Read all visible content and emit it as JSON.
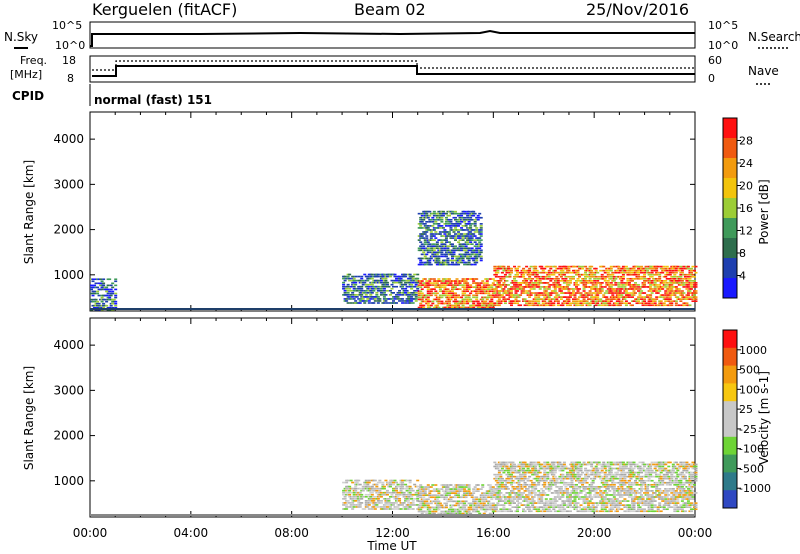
{
  "header": {
    "station": "Kerguelen (fitACF)",
    "beam": "Beam 02",
    "date": "25/Nov/2016"
  },
  "top_panels": {
    "nsky_label": "N.Sky",
    "nsky_ticks": [
      "10^5",
      "10^0"
    ],
    "nsearch_label": "N.Search",
    "nsearch_ticks": [
      "10^5",
      "10^0"
    ],
    "freq_label_line1": "Freq.",
    "freq_label_line2": "[MHz]",
    "freq_ticks": [
      "18",
      "8"
    ],
    "nave_label": "Nave",
    "nave_ticks": [
      "60",
      "0"
    ],
    "cpid_label": "CPID",
    "cpid_value": "normal (fast) 151"
  },
  "colors": {
    "power_scale": [
      "#1919ff",
      "#1e3fb0",
      "#2e6e4d",
      "#3f9a5a",
      "#9ccd36",
      "#f3c40c",
      "#f39b0e",
      "#f05a10",
      "#ff1010"
    ],
    "velocity_scale": [
      "#ff1010",
      "#f05a10",
      "#f39b0e",
      "#f7c710",
      "#c8c8c8",
      "#c8c8c8",
      "#6ed436",
      "#3f9a5a",
      "#2e7a8a",
      "#2f48c2"
    ],
    "ground_scatter": "#bbbbbb",
    "axis": "#000000"
  },
  "chart_data": [
    {
      "type": "heatmap",
      "name": "power",
      "ylabel": "Slant Range [km]",
      "yticks": [
        "1000",
        "2000",
        "3000",
        "4000"
      ],
      "ylim": [
        200,
        4600
      ],
      "xlim": [
        0,
        24
      ],
      "colorbar_label": "Power [dB]",
      "colorbar_ticks": [
        "4",
        "8",
        "12",
        "16",
        "20",
        "24",
        "28"
      ],
      "regions": [
        {
          "t0": 0.0,
          "t1": 1.0,
          "r0": 200,
          "r1": 900,
          "level": "blue"
        },
        {
          "t0": 10.0,
          "t1": 13.0,
          "r0": 350,
          "r1": 1000,
          "level": "blue"
        },
        {
          "t0": 13.0,
          "t1": 16.0,
          "r0": 250,
          "r1": 900,
          "level": "red"
        },
        {
          "t0": 13.0,
          "t1": 15.5,
          "r0": 1200,
          "r1": 2400,
          "level": "blue"
        },
        {
          "t0": 16.0,
          "t1": 24.0,
          "r0": 300,
          "r1": 1200,
          "level": "red"
        }
      ]
    },
    {
      "type": "heatmap",
      "name": "velocity",
      "ylabel": "Slant Range [km]",
      "yticks": [
        "1000",
        "2000",
        "3000",
        "4000"
      ],
      "ylim": [
        200,
        4600
      ],
      "xlim": [
        0,
        24
      ],
      "xlabel": "Time UT",
      "xticks": [
        "00:00",
        "04:00",
        "08:00",
        "12:00",
        "16:00",
        "20:00",
        "00:00"
      ],
      "colorbar_label": "Velocity [m s-1]",
      "colorbar_ticks": [
        "1000",
        "500",
        "100",
        "25",
        "-25",
        "-100",
        "-500",
        "-1000"
      ],
      "regions": [
        {
          "t0": 10.0,
          "t1": 13.0,
          "r0": 350,
          "r1": 1000,
          "level": "ground"
        },
        {
          "t0": 13.0,
          "t1": 16.0,
          "r0": 250,
          "r1": 900,
          "level": "ground"
        },
        {
          "t0": 16.0,
          "t1": 24.0,
          "r0": 300,
          "r1": 1400,
          "level": "ground"
        }
      ]
    }
  ]
}
